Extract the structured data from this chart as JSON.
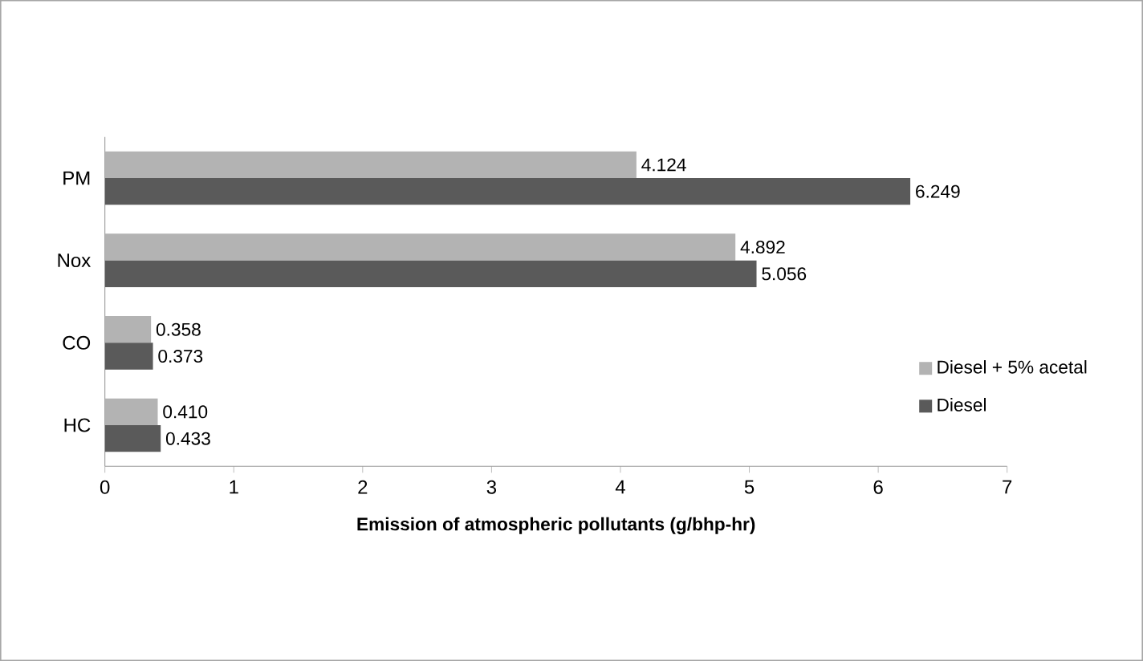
{
  "chart_data": {
    "type": "bar",
    "orientation": "horizontal",
    "xlabel": "Emission of atmospheric pollutants (g/bhp-hr)",
    "categories": [
      "PM",
      "Nox",
      "CO",
      "HC"
    ],
    "series": [
      {
        "name": "Diesel + 5% acetal",
        "color": "#b3b3b3",
        "values": [
          4.124,
          4.892,
          0.358,
          0.41
        ],
        "value_labels": [
          "4.124",
          "4.892",
          "0.358",
          "0.410"
        ]
      },
      {
        "name": "Diesel",
        "color": "#5a5a5a",
        "values": [
          6.249,
          5.056,
          0.373,
          0.433
        ],
        "value_labels": [
          "6.249",
          "5.056",
          "0.373",
          "0.433"
        ]
      }
    ],
    "xlim": [
      0,
      7
    ],
    "xticks": [
      0,
      1,
      2,
      3,
      4,
      5,
      6,
      7
    ],
    "grid": false,
    "legend": "bottom right"
  }
}
